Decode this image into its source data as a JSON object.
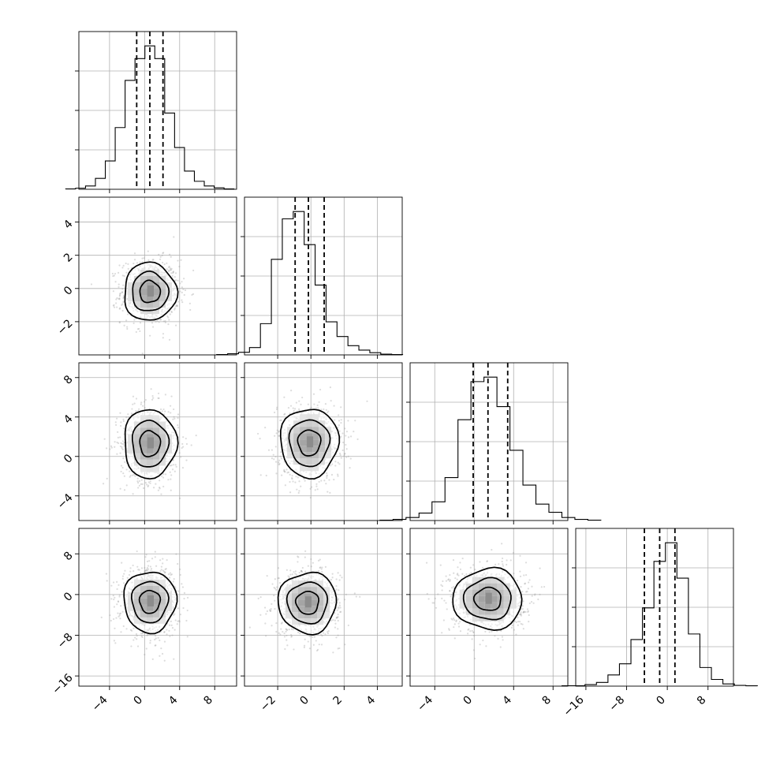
{
  "chart_data": {
    "type": "corner",
    "num_params": 4,
    "params": [
      {
        "range": [
          -7.5,
          10.5
        ],
        "ticks": [
          -4,
          0,
          4,
          8
        ],
        "tick_labels": [
          "−4",
          "0",
          "4",
          "8"
        ],
        "quantiles": [
          -0.9,
          0.6,
          2.1
        ],
        "hist_counts": [
          1,
          3,
          9,
          30,
          78,
          170,
          300,
          360,
          395,
          360,
          210,
          115,
          50,
          22,
          9,
          4,
          1
        ]
      },
      {
        "range": [
          -4.0,
          5.5
        ],
        "ticks": [
          -2,
          0,
          2,
          4
        ],
        "tick_labels": [
          "−2",
          "0",
          "2",
          "4"
        ],
        "quantiles": [
          -0.95,
          -0.15,
          0.8
        ],
        "hist_counts": [
          1,
          3,
          7,
          20,
          85,
          260,
          370,
          390,
          300,
          190,
          90,
          50,
          25,
          13,
          6,
          2,
          1
        ]
      },
      {
        "range": [
          -6.5,
          9.5
        ],
        "ticks": [
          -4,
          0,
          4,
          8
        ],
        "tick_labels": [
          "−4",
          "0",
          "4",
          "8"
        ],
        "quantiles": [
          -0.1,
          1.4,
          3.4
        ],
        "hist_counts": [
          1,
          3,
          8,
          20,
          50,
          115,
          270,
          372,
          384,
          305,
          188,
          95,
          44,
          22,
          8,
          3,
          1
        ]
      },
      {
        "range": [
          -18.0,
          13.0
        ],
        "ticks": [
          -16,
          -8,
          0,
          8
        ],
        "tick_labels": [
          "−16",
          "−8",
          "0",
          "8"
        ],
        "quantiles": [
          -4.5,
          -1.5,
          1.5
        ],
        "hist_counts": [
          1,
          1,
          4,
          10,
          30,
          60,
          125,
          210,
          335,
          385,
          290,
          140,
          50,
          18,
          6,
          2,
          1
        ]
      }
    ],
    "pair_stats": [
      {
        "row": 1,
        "col": 0,
        "center": [
          0.6,
          -0.2
        ]
      },
      {
        "row": 2,
        "col": 0,
        "center": [
          0.6,
          1.3
        ]
      },
      {
        "row": 2,
        "col": 1,
        "center": [
          -0.1,
          1.4
        ]
      },
      {
        "row": 3,
        "col": 0,
        "center": [
          0.6,
          -1.4
        ]
      },
      {
        "row": 3,
        "col": 1,
        "center": [
          -0.2,
          -1.6
        ]
      },
      {
        "row": 3,
        "col": 2,
        "center": [
          1.4,
          -0.9
        ]
      }
    ],
    "grid": true,
    "contour_levels": [
      0.5,
      0.86,
      0.98
    ],
    "colors": {
      "ink": "#000000",
      "grid": "#b0b0b0",
      "points": "#9a9a9a"
    }
  }
}
